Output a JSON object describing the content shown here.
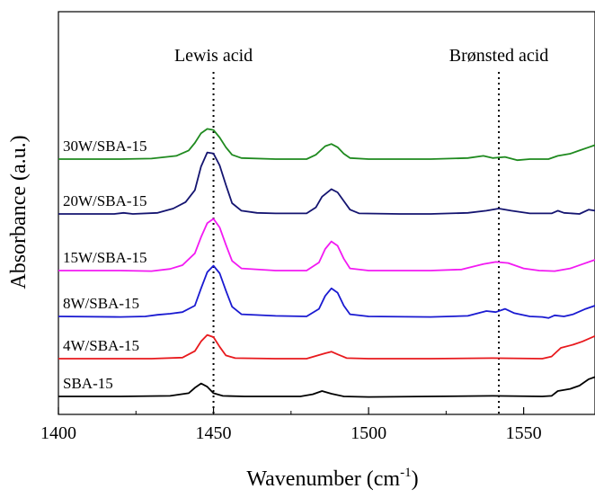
{
  "chart_data": {
    "type": "line",
    "xlabel": "Wavenumber (cm",
    "xlabel_sup": "-1",
    "xlabel_close": ")",
    "ylabel": "Absorbance (a.u.)",
    "xlim": [
      1400,
      1573
    ],
    "xticks": [
      "1400",
      "1450",
      "1500",
      "1550"
    ],
    "xtick_values": [
      1400,
      1450,
      1500,
      1550
    ],
    "grid": false,
    "annotations": [
      {
        "text": "Lewis acid",
        "x": 1450
      },
      {
        "text": "Brønsted acid",
        "x": 1542
      }
    ],
    "reference_lines": [
      1450,
      1542
    ],
    "series": [
      {
        "name": "SBA-15",
        "color": "#000000",
        "offset": 0,
        "points": [
          [
            1400,
            0
          ],
          [
            1420,
            0
          ],
          [
            1436,
            1
          ],
          [
            1442,
            6
          ],
          [
            1444,
            16
          ],
          [
            1446,
            24
          ],
          [
            1448,
            18
          ],
          [
            1450,
            6
          ],
          [
            1453,
            1
          ],
          [
            1460,
            0
          ],
          [
            1478,
            0
          ],
          [
            1482,
            4
          ],
          [
            1485,
            10
          ],
          [
            1488,
            5
          ],
          [
            1492,
            0
          ],
          [
            1500,
            -1
          ],
          [
            1520,
            0
          ],
          [
            1540,
            1
          ],
          [
            1556,
            0
          ],
          [
            1559,
            1
          ],
          [
            1561,
            10
          ],
          [
            1565,
            14
          ],
          [
            1568,
            20
          ],
          [
            1571,
            32
          ],
          [
            1573,
            36
          ]
        ]
      },
      {
        "name": "4W/SBA-15",
        "color": "#e8191d",
        "offset": 1,
        "points": [
          [
            1400,
            0
          ],
          [
            1430,
            0
          ],
          [
            1440,
            2
          ],
          [
            1444,
            14
          ],
          [
            1446,
            32
          ],
          [
            1448,
            44
          ],
          [
            1450,
            40
          ],
          [
            1452,
            22
          ],
          [
            1454,
            6
          ],
          [
            1457,
            1
          ],
          [
            1470,
            0
          ],
          [
            1480,
            0
          ],
          [
            1483,
            5
          ],
          [
            1486,
            10
          ],
          [
            1488,
            13
          ],
          [
            1490,
            8
          ],
          [
            1493,
            1
          ],
          [
            1500,
            0
          ],
          [
            1520,
            0
          ],
          [
            1540,
            1
          ],
          [
            1556,
            0
          ],
          [
            1559,
            4
          ],
          [
            1562,
            20
          ],
          [
            1566,
            26
          ],
          [
            1569,
            32
          ],
          [
            1573,
            42
          ]
        ]
      },
      {
        "name": "8W/SBA-15",
        "color": "#1a1ad1",
        "offset": 2,
        "points": [
          [
            1400,
            0
          ],
          [
            1420,
            -1
          ],
          [
            1428,
            0
          ],
          [
            1432,
            3
          ],
          [
            1436,
            5
          ],
          [
            1440,
            8
          ],
          [
            1444,
            20
          ],
          [
            1446,
            52
          ],
          [
            1448,
            82
          ],
          [
            1450,
            94
          ],
          [
            1452,
            80
          ],
          [
            1454,
            48
          ],
          [
            1456,
            18
          ],
          [
            1459,
            4
          ],
          [
            1470,
            1
          ],
          [
            1480,
            0
          ],
          [
            1484,
            14
          ],
          [
            1486,
            38
          ],
          [
            1488,
            52
          ],
          [
            1490,
            44
          ],
          [
            1492,
            20
          ],
          [
            1494,
            4
          ],
          [
            1500,
            0
          ],
          [
            1520,
            -1
          ],
          [
            1532,
            1
          ],
          [
            1538,
            10
          ],
          [
            1541,
            8
          ],
          [
            1544,
            14
          ],
          [
            1547,
            6
          ],
          [
            1552,
            0
          ],
          [
            1556,
            -1
          ],
          [
            1558,
            -3
          ],
          [
            1560,
            2
          ],
          [
            1563,
            0
          ],
          [
            1566,
            4
          ],
          [
            1570,
            14
          ],
          [
            1573,
            20
          ]
        ]
      },
      {
        "name": "15W/SBA-15",
        "color": "#f21af2",
        "offset": 3,
        "points": [
          [
            1400,
            0
          ],
          [
            1420,
            0
          ],
          [
            1430,
            -1
          ],
          [
            1436,
            3
          ],
          [
            1440,
            10
          ],
          [
            1444,
            32
          ],
          [
            1446,
            62
          ],
          [
            1448,
            88
          ],
          [
            1450,
            96
          ],
          [
            1452,
            80
          ],
          [
            1454,
            48
          ],
          [
            1456,
            18
          ],
          [
            1459,
            4
          ],
          [
            1470,
            0
          ],
          [
            1480,
            0
          ],
          [
            1484,
            15
          ],
          [
            1486,
            40
          ],
          [
            1488,
            54
          ],
          [
            1490,
            46
          ],
          [
            1492,
            22
          ],
          [
            1494,
            4
          ],
          [
            1500,
            0
          ],
          [
            1520,
            0
          ],
          [
            1530,
            2
          ],
          [
            1537,
            12
          ],
          [
            1541,
            16
          ],
          [
            1545,
            14
          ],
          [
            1550,
            4
          ],
          [
            1555,
            0
          ],
          [
            1560,
            -1
          ],
          [
            1565,
            4
          ],
          [
            1569,
            12
          ],
          [
            1573,
            20
          ]
        ]
      },
      {
        "name": "20W/SBA-15",
        "color": "#141470",
        "offset": 4,
        "points": [
          [
            1400,
            0
          ],
          [
            1418,
            0
          ],
          [
            1421,
            2
          ],
          [
            1424,
            0
          ],
          [
            1432,
            2
          ],
          [
            1437,
            10
          ],
          [
            1441,
            22
          ],
          [
            1444,
            44
          ],
          [
            1446,
            88
          ],
          [
            1448,
            114
          ],
          [
            1450,
            112
          ],
          [
            1452,
            90
          ],
          [
            1454,
            54
          ],
          [
            1456,
            20
          ],
          [
            1459,
            6
          ],
          [
            1464,
            2
          ],
          [
            1470,
            1
          ],
          [
            1480,
            1
          ],
          [
            1483,
            12
          ],
          [
            1485,
            32
          ],
          [
            1488,
            46
          ],
          [
            1490,
            40
          ],
          [
            1492,
            24
          ],
          [
            1494,
            8
          ],
          [
            1497,
            1
          ],
          [
            1510,
            0
          ],
          [
            1520,
            0
          ],
          [
            1532,
            2
          ],
          [
            1538,
            6
          ],
          [
            1542,
            10
          ],
          [
            1546,
            6
          ],
          [
            1552,
            1
          ],
          [
            1559,
            1
          ],
          [
            1561,
            6
          ],
          [
            1563,
            2
          ],
          [
            1568,
            0
          ],
          [
            1571,
            8
          ],
          [
            1573,
            6
          ]
        ]
      },
      {
        "name": "30W/SBA-15",
        "color": "#1f8a1f",
        "offset": 5,
        "points": [
          [
            1400,
            0
          ],
          [
            1420,
            0
          ],
          [
            1430,
            1
          ],
          [
            1438,
            6
          ],
          [
            1442,
            16
          ],
          [
            1444,
            30
          ],
          [
            1446,
            48
          ],
          [
            1448,
            56
          ],
          [
            1450,
            54
          ],
          [
            1452,
            40
          ],
          [
            1454,
            22
          ],
          [
            1456,
            8
          ],
          [
            1459,
            2
          ],
          [
            1470,
            0
          ],
          [
            1480,
            0
          ],
          [
            1483,
            8
          ],
          [
            1486,
            24
          ],
          [
            1488,
            28
          ],
          [
            1490,
            22
          ],
          [
            1492,
            10
          ],
          [
            1494,
            2
          ],
          [
            1500,
            0
          ],
          [
            1520,
            0
          ],
          [
            1532,
            2
          ],
          [
            1537,
            6
          ],
          [
            1540,
            2
          ],
          [
            1544,
            4
          ],
          [
            1548,
            -2
          ],
          [
            1552,
            0
          ],
          [
            1558,
            0
          ],
          [
            1561,
            6
          ],
          [
            1565,
            10
          ],
          [
            1568,
            16
          ],
          [
            1571,
            22
          ],
          [
            1573,
            26
          ]
        ]
      }
    ]
  }
}
